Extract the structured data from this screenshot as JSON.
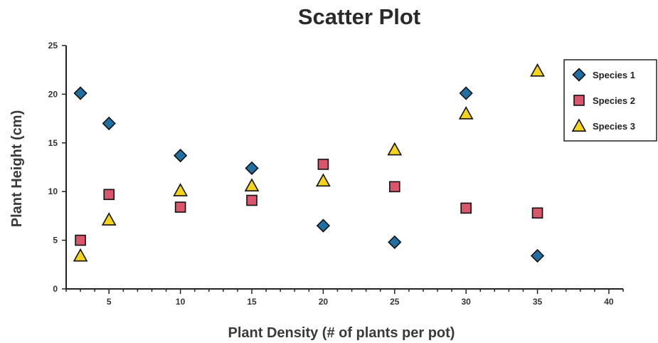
{
  "chart_data": {
    "type": "scatter",
    "title": "Scatter Plot",
    "xlabel": "Plant Density (# of plants per pot)",
    "ylabel": "Plant Height (cm)",
    "xlim": [
      2,
      41
    ],
    "ylim": [
      0,
      25
    ],
    "x_ticks": [
      5,
      10,
      15,
      20,
      25,
      30,
      35,
      40
    ],
    "x_minor_step": 1,
    "y_ticks": [
      0,
      5,
      10,
      15,
      20,
      25
    ],
    "grid": false,
    "legend": "top-right",
    "series": [
      {
        "name": "Species 1",
        "marker": "diamond",
        "color": "#1f6fa3",
        "points": [
          [
            3,
            20.1
          ],
          [
            5,
            17.0
          ],
          [
            10,
            13.7
          ],
          [
            15,
            12.4
          ],
          [
            20,
            6.5
          ],
          [
            25,
            4.8
          ],
          [
            30,
            20.1
          ],
          [
            35,
            3.4
          ]
        ]
      },
      {
        "name": "Species 2",
        "marker": "square",
        "color": "#d9566c",
        "points": [
          [
            3,
            5.0
          ],
          [
            5,
            9.7
          ],
          [
            10,
            8.4
          ],
          [
            15,
            9.1
          ],
          [
            20,
            12.8
          ],
          [
            25,
            10.5
          ],
          [
            30,
            8.3
          ],
          [
            35,
            7.8
          ]
        ]
      },
      {
        "name": "Species 3",
        "marker": "triangle",
        "color": "#f4d41a",
        "points": [
          [
            3,
            3.4
          ],
          [
            5,
            7.1
          ],
          [
            10,
            10.1
          ],
          [
            15,
            10.6
          ],
          [
            20,
            11.1
          ],
          [
            25,
            14.3
          ],
          [
            30,
            18.0
          ],
          [
            35,
            22.4
          ]
        ]
      }
    ]
  }
}
